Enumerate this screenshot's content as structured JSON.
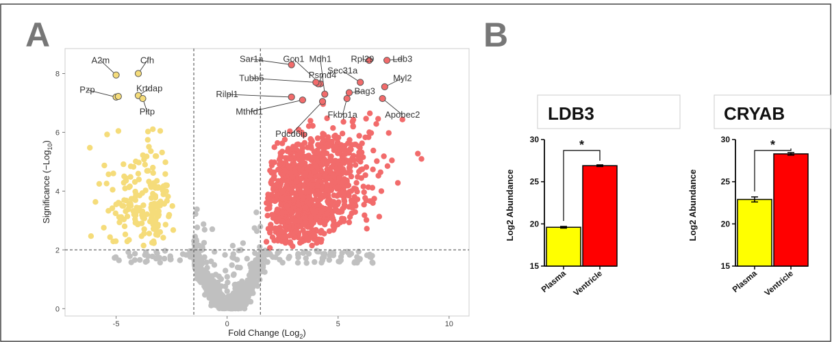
{
  "panels": {
    "a": "A",
    "b": "B"
  },
  "chart_data": [
    {
      "type": "scatter",
      "xlabel": "Fold Change (Log",
      "xlabel_sub": "2",
      "xlabel_suffix": ")",
      "ylabel": "Significance (−Log",
      "ylabel_sub": "10",
      "ylabel_suffix": ")",
      "xlim": [
        -7.3,
        10.9
      ],
      "ylim": [
        -0.25,
        8.85
      ],
      "xticks": [
        -5,
        0,
        5,
        10
      ],
      "yticks": [
        0,
        2,
        4,
        6,
        8
      ],
      "thresholds": {
        "x": [
          -1.5,
          1.5
        ],
        "y": 2
      },
      "grid": false,
      "colors": {
        "up": "#f26b6b",
        "down": "#f5dc7a",
        "ns": "#c0c0c0",
        "outline": "#555555"
      },
      "point_counts": {
        "down": 175,
        "up": 1000,
        "ns": 620
      },
      "labeled_points": [
        {
          "gene": "A2m",
          "x": -5.0,
          "y": 7.95,
          "group": "down",
          "lx": -5.7,
          "ly": 8.35
        },
        {
          "gene": "Cfh",
          "x": -4.0,
          "y": 8.0,
          "group": "down",
          "lx": -3.6,
          "ly": 8.35
        },
        {
          "gene": "Pzp",
          "x": -5.0,
          "y": 7.2,
          "group": "down",
          "lx": -6.3,
          "ly": 7.35
        },
        {
          "gene": "Pzp",
          "x": -4.9,
          "y": 7.22,
          "group": "down",
          "lx": null,
          "ly": null
        },
        {
          "gene": "Krtdap",
          "x": -4.0,
          "y": 7.25,
          "group": "down",
          "lx": -3.5,
          "ly": 7.4
        },
        {
          "gene": "Pltp",
          "x": -3.8,
          "y": 7.15,
          "group": "down",
          "lx": -3.6,
          "ly": 6.6
        },
        {
          "gene": "Sar1a",
          "x": 2.9,
          "y": 8.3,
          "group": "up",
          "lx": 1.1,
          "ly": 8.4
        },
        {
          "gene": "Gcn1",
          "x": 4.2,
          "y": 7.65,
          "group": "up",
          "lx": 3.0,
          "ly": 8.4
        },
        {
          "gene": "Mdh1",
          "x": 4.4,
          "y": 7.3,
          "group": "up",
          "lx": 4.2,
          "ly": 8.4
        },
        {
          "gene": "Rpl29",
          "x": 6.4,
          "y": 8.45,
          "group": "up",
          "lx": 6.1,
          "ly": 8.4
        },
        {
          "gene": "Ldb3",
          "x": 7.2,
          "y": 8.45,
          "group": "up",
          "lx": 7.9,
          "ly": 8.4
        },
        {
          "gene": "Psmd4",
          "x": 4.1,
          "y": 7.65,
          "group": "up",
          "lx": 4.3,
          "ly": 7.85
        },
        {
          "gene": "Sec31a",
          "x": 6.0,
          "y": 7.7,
          "group": "up",
          "lx": 5.2,
          "ly": 8.0
        },
        {
          "gene": "Tubb5",
          "x": 4.0,
          "y": 7.7,
          "group": "up",
          "lx": 1.1,
          "ly": 7.75
        },
        {
          "gene": "Myl2",
          "x": 7.1,
          "y": 7.55,
          "group": "up",
          "lx": 7.9,
          "ly": 7.75
        },
        {
          "gene": "Bag3",
          "x": 5.5,
          "y": 7.35,
          "group": "up",
          "lx": 6.2,
          "ly": 7.3
        },
        {
          "gene": "Rilpl1",
          "x": 2.9,
          "y": 7.2,
          "group": "up",
          "lx": 0.0,
          "ly": 7.2
        },
        {
          "gene": "Apobec2",
          "x": 7.0,
          "y": 7.15,
          "group": "up",
          "lx": 7.9,
          "ly": 6.5
        },
        {
          "gene": "Mthfd1",
          "x": 3.4,
          "y": 7.1,
          "group": "up",
          "lx": 1.0,
          "ly": 6.6
        },
        {
          "gene": "Fkbp1a",
          "x": 5.4,
          "y": 7.15,
          "group": "up",
          "lx": 5.2,
          "ly": 6.5
        },
        {
          "gene": "Pdcd6ip",
          "x": 4.3,
          "y": 7.05,
          "group": "up",
          "lx": 2.9,
          "ly": 5.85
        }
      ]
    },
    {
      "type": "bar",
      "title": "LDB3",
      "categories": [
        "Plasma",
        "Ventricle"
      ],
      "values": [
        19.6,
        26.9
      ],
      "errors": [
        0.1,
        0.1
      ],
      "colors": [
        "#ffff00",
        "#ff0000"
      ],
      "ylabel": "Log2 Abundance",
      "ylim": [
        15,
        30
      ],
      "yticks": [
        15,
        20,
        25,
        30
      ],
      "significance": "*"
    },
    {
      "type": "bar",
      "title": "CRYAB",
      "categories": [
        "Plasma",
        "Ventricle"
      ],
      "values": [
        22.9,
        28.3
      ],
      "errors": [
        0.3,
        0.15
      ],
      "colors": [
        "#ffff00",
        "#ff0000"
      ],
      "ylabel": "Log2 Abundance",
      "ylim": [
        15,
        30
      ],
      "yticks": [
        15,
        20,
        25,
        30
      ],
      "significance": "*"
    }
  ]
}
